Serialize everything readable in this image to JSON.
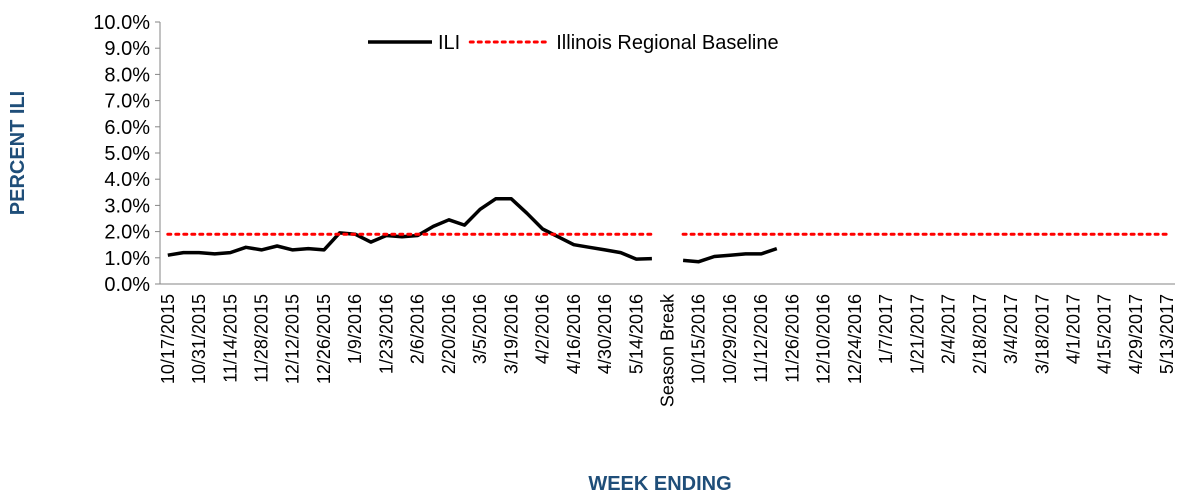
{
  "chart_data": {
    "type": "line",
    "categories": [
      "10/17/2015",
      null,
      "10/31/2015",
      null,
      "11/14/2015",
      null,
      "11/28/2015",
      null,
      "12/12/2015",
      null,
      "12/26/2015",
      null,
      "1/9/2016",
      null,
      "1/23/2016",
      null,
      "2/6/2016",
      null,
      "2/20/2016",
      null,
      "3/5/2016",
      null,
      "3/19/2016",
      null,
      "4/2/2016",
      null,
      "4/16/2016",
      null,
      "4/30/2016",
      null,
      "5/14/2016",
      null,
      "Season Break",
      null,
      "10/15/2016",
      null,
      "10/29/2016",
      null,
      "11/12/2016",
      null,
      "11/26/2016",
      null,
      "12/10/2016",
      null,
      "12/24/2016",
      null,
      "1/7/2017",
      null,
      "1/21/2017",
      null,
      "2/4/2017",
      null,
      "2/18/2017",
      null,
      "3/4/2017",
      null,
      "3/18/2017",
      null,
      "4/1/2017",
      null,
      "4/15/2017",
      null,
      "4/29/2017",
      null,
      "5/13/2017"
    ],
    "series": [
      {
        "name": "ILI",
        "color": "#000000",
        "style": "solid",
        "values": [
          1.1,
          1.2,
          1.2,
          1.15,
          1.2,
          1.4,
          1.3,
          1.45,
          1.3,
          1.35,
          1.3,
          1.95,
          1.9,
          1.6,
          1.85,
          1.8,
          1.85,
          2.2,
          2.45,
          2.25,
          2.85,
          3.25,
          3.25,
          2.7,
          2.1,
          1.8,
          1.5,
          1.4,
          1.3,
          1.2,
          0.95,
          0.97,
          null,
          0.9,
          0.85,
          1.05,
          1.1,
          1.15,
          1.15,
          1.35,
          null,
          null,
          null,
          null,
          null,
          null,
          null,
          null,
          null,
          null,
          null,
          null,
          null,
          null,
          null,
          null,
          null,
          null,
          null,
          null,
          null,
          null,
          null,
          null,
          null
        ]
      },
      {
        "name": "Illinois Regional Baseline",
        "color": "#ff0000",
        "style": "dotted",
        "values": [
          1.9,
          1.9,
          1.9,
          1.9,
          1.9,
          1.9,
          1.9,
          1.9,
          1.9,
          1.9,
          1.9,
          1.9,
          1.9,
          1.9,
          1.9,
          1.9,
          1.9,
          1.9,
          1.9,
          1.9,
          1.9,
          1.9,
          1.9,
          1.9,
          1.9,
          1.9,
          1.9,
          1.9,
          1.9,
          1.9,
          1.9,
          1.9,
          null,
          1.9,
          1.9,
          1.9,
          1.9,
          1.9,
          1.9,
          1.9,
          1.9,
          1.9,
          1.9,
          1.9,
          1.9,
          1.9,
          1.9,
          1.9,
          1.9,
          1.9,
          1.9,
          1.9,
          1.9,
          1.9,
          1.9,
          1.9,
          1.9,
          1.9,
          1.9,
          1.9,
          1.9,
          1.9,
          1.9,
          1.9,
          1.9
        ]
      }
    ],
    "x_label": "WEEK ENDING",
    "y_label": "PERCENT ILI",
    "ylim": [
      0,
      10
    ],
    "yticks": [
      {
        "value": 0,
        "label": "0.0%"
      },
      {
        "value": 1,
        "label": "1.0%"
      },
      {
        "value": 2,
        "label": "2.0%"
      },
      {
        "value": 3,
        "label": "3.0%"
      },
      {
        "value": 4,
        "label": "4.0%"
      },
      {
        "value": 5,
        "label": "5.0%"
      },
      {
        "value": 6,
        "label": "6.0%"
      },
      {
        "value": 7,
        "label": "7.0%"
      },
      {
        "value": 8,
        "label": "8.0%"
      },
      {
        "value": 9,
        "label": "9.0%"
      },
      {
        "value": 10,
        "label": "10.0%"
      }
    ],
    "legend": "top"
  }
}
